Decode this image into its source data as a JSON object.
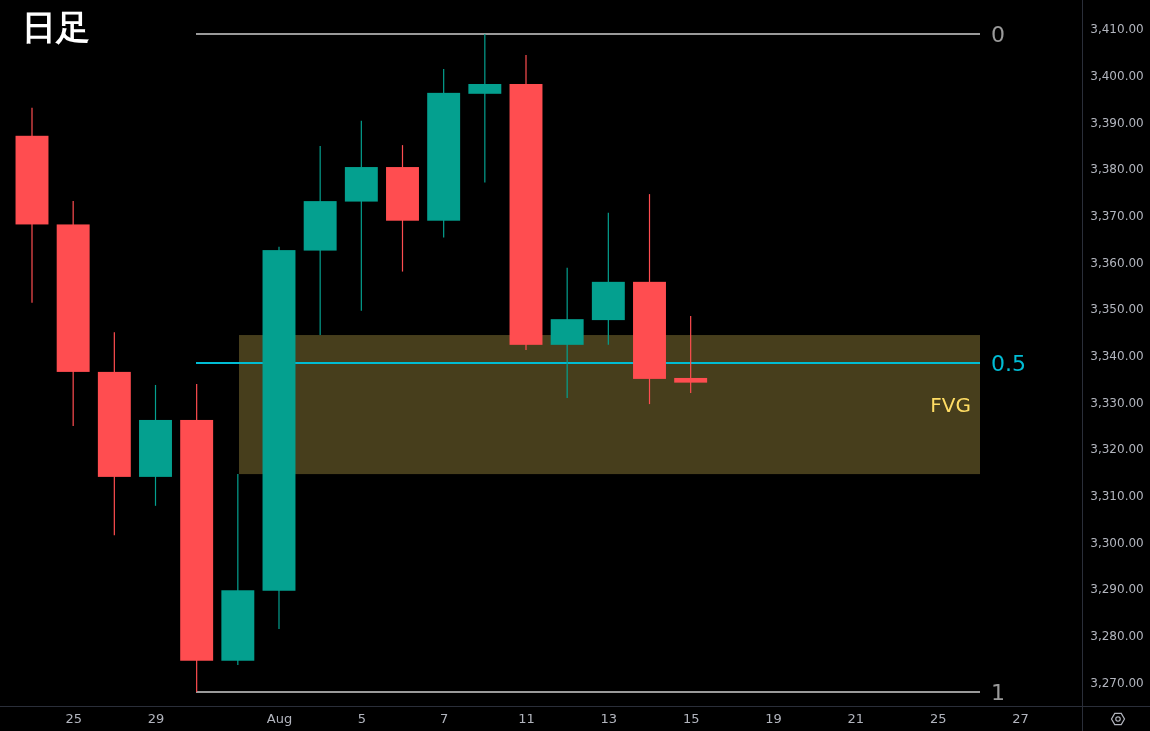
{
  "chart_data": {
    "type": "candlestick",
    "title": "日足",
    "categories": [
      null,
      "25",
      null,
      "29",
      null,
      null,
      "Aug",
      null,
      "5",
      null,
      "7",
      null,
      "11",
      null,
      "13",
      null,
      "15",
      null,
      "19",
      null,
      "21",
      null,
      "25",
      null,
      "27"
    ],
    "ohlc": [
      [
        3387.1,
        3393.1,
        3351.3,
        3368.1
      ],
      [
        3368.1,
        3373.1,
        3324.9,
        3336.5
      ],
      [
        3336.5,
        3345.0,
        3301.5,
        3314.0
      ],
      [
        3314.0,
        3333.7,
        3307.8,
        3326.2
      ],
      [
        3326.2,
        3333.9,
        3267.9,
        3274.6
      ],
      [
        3274.6,
        3314.6,
        3273.7,
        3289.7
      ],
      [
        3289.6,
        3363.3,
        3281.4,
        3362.6
      ],
      [
        3362.5,
        3384.9,
        3344.4,
        3373.1
      ],
      [
        3373.0,
        3390.3,
        3349.6,
        3380.4
      ],
      [
        3380.4,
        3385.1,
        3358.0,
        3368.9
      ],
      [
        3368.9,
        3401.4,
        3365.3,
        3396.3
      ],
      [
        3396.1,
        3408.9,
        3377.1,
        3398.2
      ],
      [
        3398.2,
        3404.4,
        3341.2,
        3342.3
      ],
      [
        3342.3,
        3358.8,
        3330.9,
        3347.8
      ],
      [
        3347.6,
        3370.6,
        3342.3,
        3355.8
      ],
      [
        3355.8,
        3374.6,
        3329.6,
        3335.0
      ],
      [
        3335.2,
        3348.5,
        3332.0,
        3334.2
      ],
      null,
      null,
      null,
      null,
      null,
      null,
      null,
      null
    ],
    "colors": [
      "#ff4d50",
      "#ff4d50",
      "#ff4d50",
      "#04a08f",
      "#ff4d50",
      "#04a08f",
      "#04a08f",
      "#04a08f",
      "#04a08f",
      "#ff4d50",
      "#04a08f",
      "#04a08f",
      "#ff4d50",
      "#04a08f",
      "#04a08f",
      "#ff4d50",
      "#ff4d50",
      null,
      null,
      null,
      null,
      null,
      null,
      null,
      null
    ],
    "ylim": [
      3264.9,
      3416.2
    ],
    "yticks": [
      {
        "value": 3270,
        "label": "3,270.00"
      },
      {
        "value": 3280,
        "label": "3,280.00"
      },
      {
        "value": 3290,
        "label": "3,290.00"
      },
      {
        "value": 3300,
        "label": "3,300.00"
      },
      {
        "value": 3310,
        "label": "3,310.00"
      },
      {
        "value": 3320,
        "label": "3,320.00"
      },
      {
        "value": 3330,
        "label": "3,330.00"
      },
      {
        "value": 3340,
        "label": "3,340.00"
      },
      {
        "value": 3350,
        "label": "3,350.00"
      },
      {
        "value": 3360,
        "label": "3,360.00"
      },
      {
        "value": 3370,
        "label": "3,370.00"
      },
      {
        "value": 3380,
        "label": "3,380.00"
      },
      {
        "value": 3390,
        "label": "3,390.00"
      },
      {
        "value": 3400,
        "label": "3,400.00"
      },
      {
        "value": 3410,
        "label": "3,410.00"
      }
    ],
    "ref_lines": [
      {
        "axis": "y",
        "value": 3408.9,
        "color": "#9a9a9a"
      },
      {
        "axis": "y",
        "value": 3338.4,
        "color": "#00bcd4"
      },
      {
        "axis": "y",
        "value": 3267.9,
        "color": "#9a9a9a"
      }
    ],
    "bands": [
      {
        "axis": "y",
        "from": 3314.6,
        "to": 3344.4,
        "label": "FVG",
        "color": "#ffdd64"
      }
    ],
    "annotations": [
      "0",
      "0.5",
      "1"
    ]
  }
}
